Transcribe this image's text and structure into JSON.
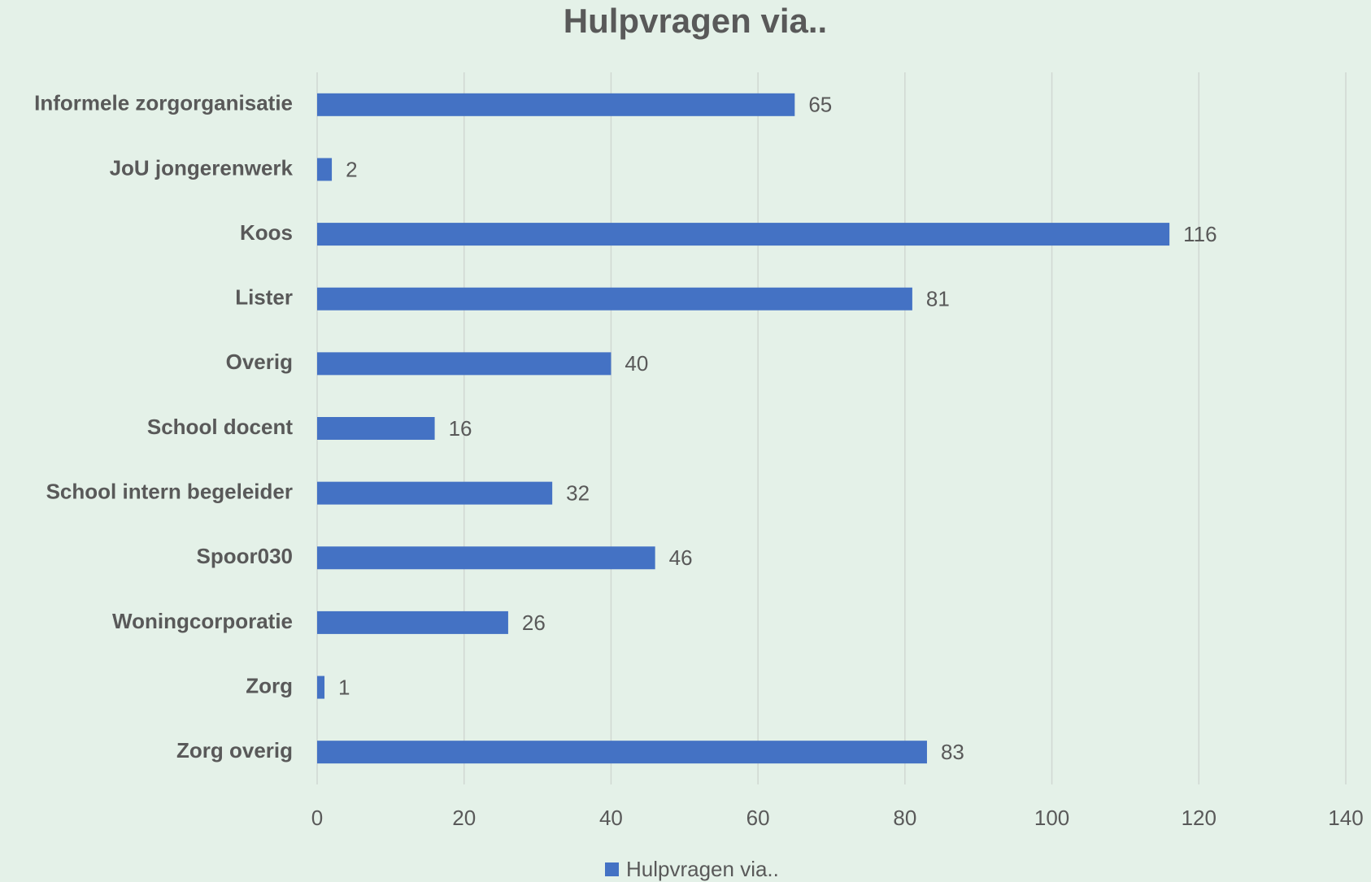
{
  "chart_data": {
    "type": "bar",
    "orientation": "horizontal",
    "title": "Hulpvragen via..",
    "categories": [
      "Informele zorgorganisatie",
      "JoU jongerenwerk",
      "Koos",
      "Lister",
      "Overig",
      "School docent",
      "School intern begeleider",
      "Spoor030",
      "Woningcorporatie",
      "Zorg",
      "Zorg overig"
    ],
    "series": [
      {
        "name": "Hulpvragen via..",
        "color": "#4472c4",
        "values": [
          65,
          2,
          116,
          81,
          40,
          16,
          32,
          46,
          26,
          1,
          83
        ]
      }
    ],
    "xlim": [
      0,
      140
    ],
    "xticks": [
      0,
      20,
      40,
      60,
      80,
      100,
      120,
      140
    ],
    "grid": true,
    "legend": "bottom"
  }
}
